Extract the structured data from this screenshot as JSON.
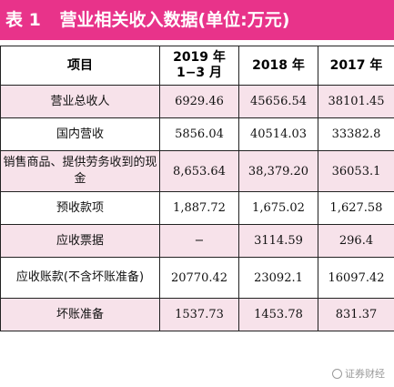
{
  "title": {
    "prefix": "表 1",
    "text": "营业相关收入数据(单位:万元)"
  },
  "table": {
    "headers": [
      "项目",
      "2019 年 1−3 月",
      "2018 年",
      "2017 年"
    ],
    "rows": [
      {
        "item": "营业总收人",
        "values": [
          "6929.46",
          "45656.54",
          "38101.45"
        ]
      },
      {
        "item": "国内营收",
        "values": [
          "5856.04",
          "40514.03",
          "33382.8"
        ]
      },
      {
        "item": "销售商品、提供劳务收到的现金",
        "values": [
          "8,653.64",
          "38,379.20",
          "36053.1"
        ]
      },
      {
        "item": "预收款项",
        "values": [
          "1,887.72",
          "1,675.02",
          "1,627.58"
        ]
      },
      {
        "item": "应收票据",
        "values": [
          "−",
          "3114.59",
          "296.4"
        ]
      },
      {
        "item": "应收账款(不含坏账准备)",
        "values": [
          "20770.42",
          "23092.1",
          "16097.42"
        ]
      },
      {
        "item": "坏账准备",
        "values": [
          "1537.73",
          "1453.78",
          "831.37"
        ]
      }
    ]
  },
  "watermark": {
    "text": "证券财经",
    "icon": "logo-icon"
  }
}
